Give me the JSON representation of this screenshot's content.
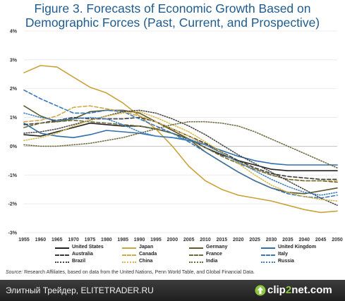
{
  "title_line1": "Figure 3. Forecasts of Economic Growth Based on",
  "title_line2": "Demographic Forces (Past, Current, and Prospective)",
  "source_label": "Source:",
  "source_text": " Research Affiliates, based on data from the United Nations, Penn World Table, and Global Financial Data.",
  "footer_text": "Элитный Трейдер, ELITETRADER.RU",
  "logo_text_a": "clip",
  "logo_text_b": "2",
  "logo_text_c": "net.com",
  "logo_icon": "arrow-up-icon",
  "chart_data": {
    "type": "line",
    "title": "Figure 3. Forecasts of Economic Growth Based on Demographic Forces (Past, Current, and Prospective)",
    "xlabel": "",
    "ylabel": "",
    "x": [
      1955,
      1960,
      1965,
      1970,
      1975,
      1980,
      1985,
      1990,
      1995,
      2000,
      2005,
      2010,
      2015,
      2020,
      2025,
      2030,
      2035,
      2040,
      2045,
      2050
    ],
    "x_tick_labels": [
      "1955",
      "1960",
      "1965",
      "1970",
      "1975",
      "1980",
      "1985",
      "1990",
      "1995",
      "2000",
      "2005",
      "2010",
      "2015",
      "2020",
      "2025",
      "2030",
      "2035",
      "2040",
      "2045",
      "2050"
    ],
    "y_ticks": [
      4,
      3,
      2,
      1,
      0,
      -1,
      -2,
      -3
    ],
    "y_tick_labels": [
      "4%",
      "3%",
      "2%",
      "1%",
      "0%",
      "-1%",
      "-2%",
      "-3%"
    ],
    "ylim": [
      -3,
      4
    ],
    "grid": "horizontal",
    "legend_position": "bottom",
    "series": [
      {
        "name": "United States",
        "color": "#222222",
        "dash": "solid",
        "values": [
          0.4,
          0.35,
          0.5,
          0.65,
          0.8,
          0.75,
          0.7,
          0.7,
          0.6,
          0.45,
          0.25,
          -0.05,
          -0.3,
          -0.5,
          -0.65,
          -0.8,
          -0.85,
          -0.85,
          -0.85,
          -0.85
        ]
      },
      {
        "name": "Japan",
        "color": "#c9a33a",
        "dash": "solid",
        "values": [
          2.55,
          2.8,
          2.75,
          2.4,
          2.05,
          1.85,
          1.5,
          1.05,
          0.6,
          0.0,
          -0.7,
          -1.2,
          -1.5,
          -1.7,
          -1.8,
          -1.9,
          -2.05,
          -2.2,
          -2.3,
          -2.25
        ]
      },
      {
        "name": "Germany",
        "color": "#5e5a2e",
        "dash": "solid",
        "values": [
          1.4,
          1.05,
          0.85,
          0.95,
          1.2,
          1.25,
          1.25,
          1.15,
          0.85,
          0.55,
          0.25,
          -0.2,
          -0.55,
          -0.9,
          -1.2,
          -1.45,
          -1.6,
          -1.65,
          -1.55,
          -1.45
        ]
      },
      {
        "name": "United Kingdom",
        "color": "#2e6fad",
        "dash": "solid",
        "values": [
          0.8,
          0.45,
          0.35,
          0.3,
          0.4,
          0.55,
          0.5,
          0.45,
          0.35,
          0.3,
          0.2,
          0.05,
          -0.15,
          -0.35,
          -0.5,
          -0.6,
          -0.65,
          -0.65,
          -0.65,
          -0.65
        ]
      },
      {
        "name": "Australia",
        "color": "#3a3a3a",
        "dash": "dash",
        "values": [
          0.75,
          0.8,
          0.9,
          1.0,
          0.95,
          0.95,
          0.95,
          1.0,
          0.85,
          0.6,
          0.35,
          0.1,
          -0.2,
          -0.5,
          -0.75,
          -0.95,
          -1.05,
          -1.1,
          -1.15,
          -1.15
        ]
      },
      {
        "name": "Canada",
        "color": "#d4a84a",
        "dash": "dash",
        "values": [
          0.85,
          0.9,
          1.05,
          1.35,
          1.4,
          1.3,
          1.2,
          1.05,
          0.85,
          0.6,
          0.35,
          0.05,
          -0.25,
          -0.55,
          -0.8,
          -1.0,
          -1.15,
          -1.2,
          -1.2,
          -1.2
        ]
      },
      {
        "name": "France",
        "color": "#6b6b3a",
        "dash": "dash",
        "values": [
          0.65,
          0.8,
          0.85,
          0.9,
          0.85,
          0.8,
          0.75,
          0.7,
          0.6,
          0.45,
          0.25,
          -0.05,
          -0.35,
          -0.6,
          -0.8,
          -1.0,
          -1.15,
          -1.2,
          -1.2,
          -1.25
        ]
      },
      {
        "name": "Italy",
        "color": "#3a78bd",
        "dash": "dash",
        "values": [
          1.95,
          1.65,
          1.4,
          1.15,
          1.15,
          1.25,
          1.2,
          0.95,
          0.7,
          0.45,
          0.15,
          -0.2,
          -0.55,
          -0.9,
          -1.2,
          -1.45,
          -1.65,
          -1.75,
          -1.8,
          -1.7
        ]
      },
      {
        "name": "Brazil",
        "color": "#444444",
        "dash": "dot",
        "values": [
          0.45,
          0.5,
          0.6,
          0.75,
          0.9,
          1.05,
          1.2,
          1.25,
          1.15,
          0.95,
          0.7,
          0.4,
          0.05,
          -0.3,
          -0.6,
          -0.9,
          -1.2,
          -1.5,
          -1.8,
          -2.05
        ]
      },
      {
        "name": "China",
        "color": "#d8b84f",
        "dash": "dot",
        "values": [
          0.2,
          0.3,
          0.45,
          0.7,
          0.9,
          1.05,
          1.15,
          1.2,
          1.0,
          0.75,
          0.5,
          0.15,
          -0.2,
          -0.6,
          -1.0,
          -1.35,
          -1.6,
          -1.75,
          -1.85,
          -1.9
        ]
      },
      {
        "name": "India",
        "color": "#6e6a3e",
        "dash": "dot",
        "values": [
          0.05,
          0.0,
          0.0,
          0.05,
          0.1,
          0.2,
          0.3,
          0.45,
          0.6,
          0.75,
          0.85,
          0.85,
          0.8,
          0.7,
          0.5,
          0.25,
          0.0,
          -0.25,
          -0.5,
          -0.75
        ]
      },
      {
        "name": "Russia",
        "color": "#3f80c2",
        "dash": "dot",
        "values": [
          1.15,
          1.0,
          0.9,
          0.95,
          1.0,
          0.95,
          0.75,
          0.5,
          0.35,
          0.3,
          0.25,
          0.05,
          -0.25,
          -0.55,
          -0.85,
          -1.15,
          -1.4,
          -1.6,
          -1.7,
          -1.6
        ]
      }
    ]
  }
}
